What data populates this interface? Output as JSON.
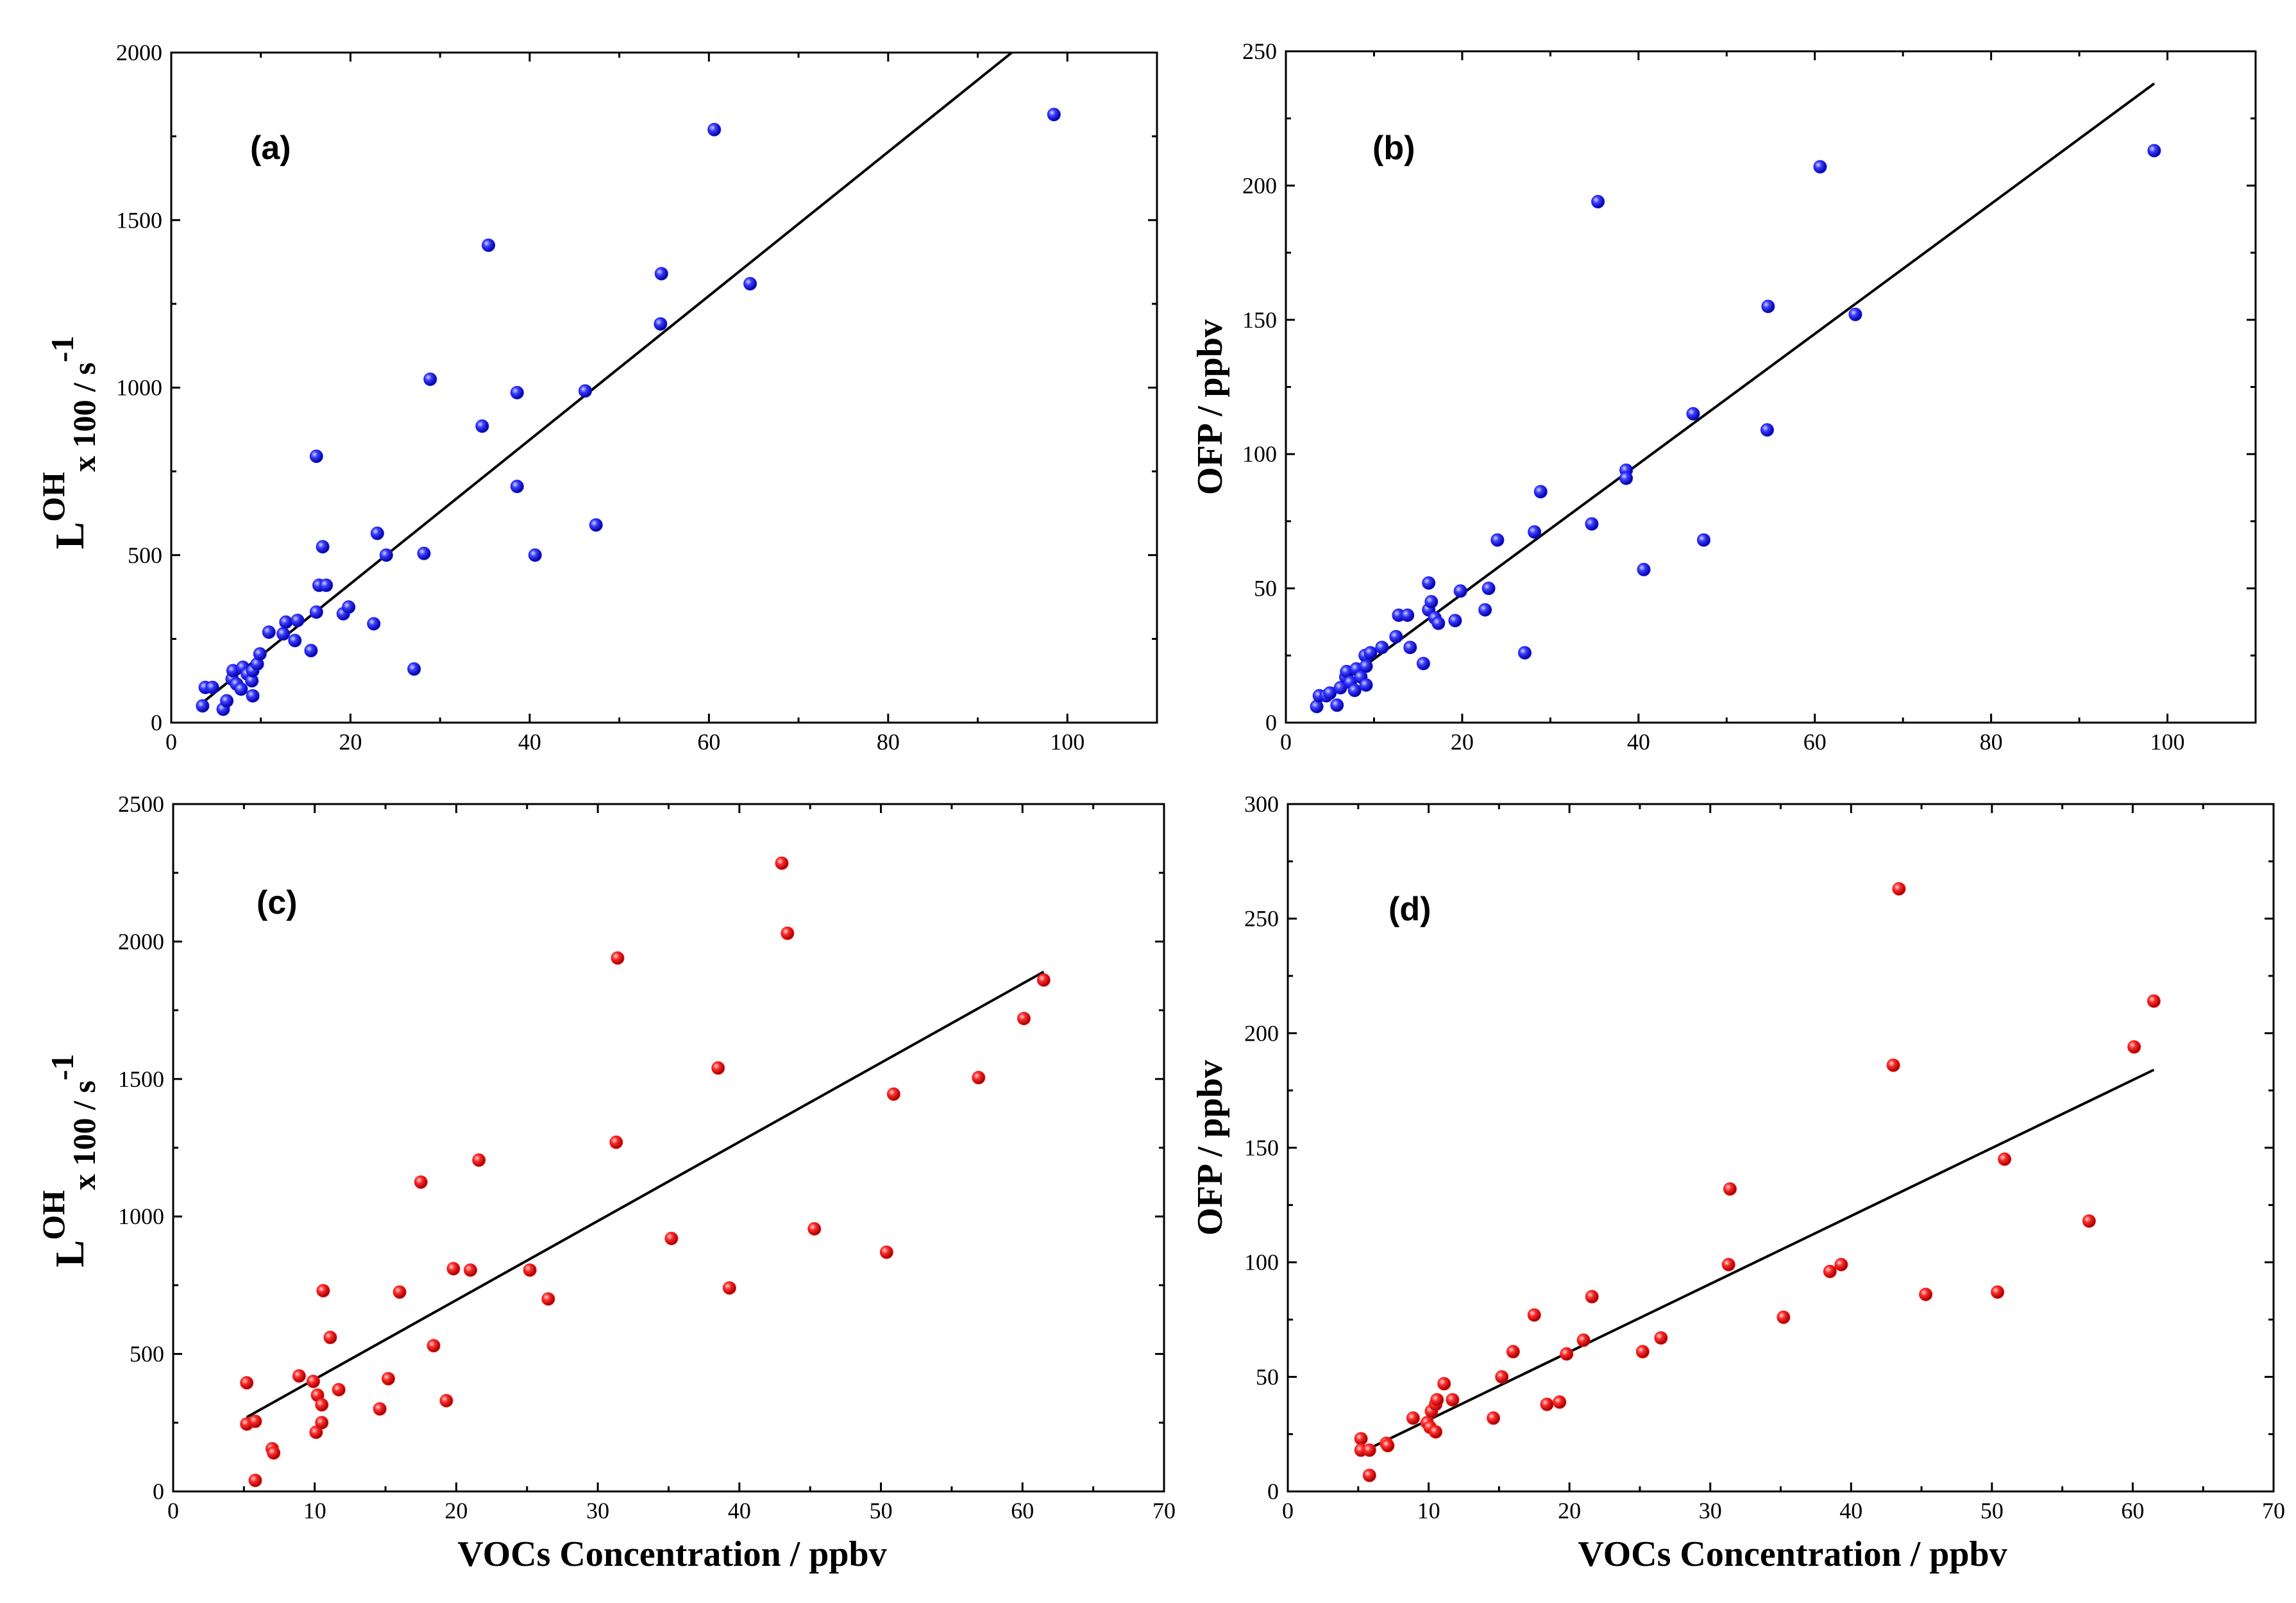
{
  "figure_colors": {
    "blue_marker": "#1a1aff",
    "red_marker": "#ff1a1a",
    "axis": "#000000",
    "fit_line": "#000000"
  },
  "chart_data": [
    {
      "type": "scatter",
      "panel_label": "(a)",
      "xlabel": "",
      "ylabel": {
        "main": "L",
        "superscript": "OH",
        "subscript": "x 100 / s",
        "unit_superscript": "-1"
      },
      "xlim": [
        0,
        110
      ],
      "ylim": [
        0,
        2000
      ],
      "xticks": [
        0,
        20,
        40,
        60,
        80,
        100
      ],
      "yticks": [
        0,
        500,
        1000,
        1500,
        2000
      ],
      "xtick_labels": [
        "0",
        "20",
        "40",
        "60",
        "80",
        "100"
      ],
      "ytick_labels": [
        "0",
        "500",
        "1000",
        "1500",
        "2000"
      ],
      "marker_color": "#1a1aff",
      "fit_line": {
        "x": [
          3.5,
          93.8
        ],
        "y": [
          60,
          2000
        ]
      },
      "points": [
        [
          3.5,
          50
        ],
        [
          3.8,
          105
        ],
        [
          4.6,
          105
        ],
        [
          5.8,
          40
        ],
        [
          6.2,
          65
        ],
        [
          6.8,
          130
        ],
        [
          6.9,
          155
        ],
        [
          7.3,
          115
        ],
        [
          7.8,
          100
        ],
        [
          8.0,
          165
        ],
        [
          8.5,
          145
        ],
        [
          9.0,
          125
        ],
        [
          9.1,
          80
        ],
        [
          9.1,
          155
        ],
        [
          9.6,
          175
        ],
        [
          9.9,
          205
        ],
        [
          10.9,
          270
        ],
        [
          12.5,
          265
        ],
        [
          12.8,
          300
        ],
        [
          13.8,
          245
        ],
        [
          14.1,
          305
        ],
        [
          15.6,
          215
        ],
        [
          16.2,
          330
        ],
        [
          16.2,
          795
        ],
        [
          16.5,
          410
        ],
        [
          16.9,
          525
        ],
        [
          17.3,
          410
        ],
        [
          19.2,
          325
        ],
        [
          19.8,
          345
        ],
        [
          22.6,
          295
        ],
        [
          23.0,
          565
        ],
        [
          24.0,
          500
        ],
        [
          27.1,
          160
        ],
        [
          28.2,
          505
        ],
        [
          28.9,
          1025
        ],
        [
          34.7,
          885
        ],
        [
          35.4,
          1425
        ],
        [
          38.6,
          985
        ],
        [
          38.6,
          705
        ],
        [
          40.6,
          500
        ],
        [
          46.2,
          990
        ],
        [
          47.4,
          590
        ],
        [
          54.6,
          1190
        ],
        [
          54.7,
          1340
        ],
        [
          60.6,
          1770
        ],
        [
          64.6,
          1310
        ],
        [
          98.5,
          1815
        ]
      ]
    },
    {
      "type": "scatter",
      "panel_label": "(b)",
      "xlabel": "",
      "ylabel": {
        "main": "OFP / ppbv"
      },
      "xlim": [
        0,
        110
      ],
      "ylim": [
        0,
        250
      ],
      "xticks": [
        0,
        20,
        40,
        60,
        80,
        100
      ],
      "yticks": [
        0,
        50,
        100,
        150,
        200,
        250
      ],
      "xtick_labels": [
        "0",
        "20",
        "40",
        "60",
        "80",
        "100"
      ],
      "ytick_labels": [
        "0",
        "50",
        "100",
        "150",
        "200",
        "250"
      ],
      "marker_color": "#1a1aff",
      "fit_line": {
        "x": [
          3.5,
          98.5
        ],
        "y": [
          8,
          238
        ]
      },
      "points": [
        [
          3.5,
          6
        ],
        [
          3.8,
          10
        ],
        [
          4.6,
          10
        ],
        [
          5.0,
          11
        ],
        [
          5.8,
          6.5
        ],
        [
          6.2,
          13
        ],
        [
          6.8,
          17
        ],
        [
          6.9,
          19
        ],
        [
          7.3,
          15
        ],
        [
          7.8,
          12
        ],
        [
          8.0,
          20
        ],
        [
          8.5,
          17
        ],
        [
          9.0,
          25
        ],
        [
          9.1,
          14
        ],
        [
          9.1,
          21
        ],
        [
          9.6,
          26
        ],
        [
          10.9,
          28
        ],
        [
          12.5,
          32
        ],
        [
          12.8,
          40
        ],
        [
          13.8,
          40
        ],
        [
          14.1,
          28
        ],
        [
          15.6,
          22
        ],
        [
          16.2,
          42
        ],
        [
          16.2,
          52
        ],
        [
          16.5,
          45
        ],
        [
          16.9,
          39
        ],
        [
          17.3,
          37
        ],
        [
          19.2,
          38
        ],
        [
          19.8,
          49
        ],
        [
          22.6,
          42
        ],
        [
          23.0,
          50
        ],
        [
          24.0,
          68
        ],
        [
          27.1,
          26
        ],
        [
          28.2,
          71
        ],
        [
          28.9,
          86
        ],
        [
          34.7,
          74
        ],
        [
          35.4,
          194
        ],
        [
          38.6,
          94
        ],
        [
          38.6,
          91
        ],
        [
          40.6,
          57
        ],
        [
          46.2,
          115
        ],
        [
          47.4,
          68
        ],
        [
          54.6,
          109
        ],
        [
          54.7,
          155
        ],
        [
          60.6,
          207
        ],
        [
          64.6,
          152
        ],
        [
          98.5,
          213
        ]
      ]
    },
    {
      "type": "scatter",
      "panel_label": "(c)",
      "xlabel": "VOCs Concentration / ppbv",
      "ylabel": {
        "main": "L",
        "superscript": "OH",
        "subscript": "x 100 / s",
        "unit_superscript": "-1"
      },
      "xlim": [
        0,
        70
      ],
      "ylim": [
        0,
        2500
      ],
      "xticks": [
        0,
        10,
        20,
        30,
        40,
        50,
        60,
        70
      ],
      "yticks": [
        0,
        500,
        1000,
        1500,
        2000,
        2500
      ],
      "xtick_labels": [
        "0",
        "10",
        "20",
        "30",
        "40",
        "50",
        "60",
        "70"
      ],
      "ytick_labels": [
        "0",
        "500",
        "1000",
        "1500",
        "2000",
        "2500"
      ],
      "marker_color": "#ff1a1a",
      "fit_line": {
        "x": [
          5.2,
          61.5
        ],
        "y": [
          270,
          1890
        ]
      },
      "points": [
        [
          5.2,
          395
        ],
        [
          5.2,
          245
        ],
        [
          5.8,
          255
        ],
        [
          5.8,
          40
        ],
        [
          7.0,
          155
        ],
        [
          7.1,
          140
        ],
        [
          8.9,
          420
        ],
        [
          9.9,
          400
        ],
        [
          10.1,
          215
        ],
        [
          10.2,
          350
        ],
        [
          10.5,
          315
        ],
        [
          10.5,
          250
        ],
        [
          10.6,
          730
        ],
        [
          11.1,
          560
        ],
        [
          11.7,
          370
        ],
        [
          14.6,
          300
        ],
        [
          15.2,
          410
        ],
        [
          16.0,
          725
        ],
        [
          17.5,
          1125
        ],
        [
          18.4,
          530
        ],
        [
          19.3,
          330
        ],
        [
          19.8,
          810
        ],
        [
          21.0,
          805
        ],
        [
          21.6,
          1205
        ],
        [
          25.2,
          805
        ],
        [
          26.5,
          700
        ],
        [
          31.3,
          1270
        ],
        [
          31.4,
          1940
        ],
        [
          35.2,
          920
        ],
        [
          38.5,
          1540
        ],
        [
          39.3,
          740
        ],
        [
          43.0,
          2285
        ],
        [
          43.4,
          2030
        ],
        [
          45.3,
          955
        ],
        [
          50.4,
          870
        ],
        [
          50.9,
          1445
        ],
        [
          56.9,
          1505
        ],
        [
          60.1,
          1720
        ],
        [
          61.5,
          1860
        ]
      ]
    },
    {
      "type": "scatter",
      "panel_label": "(d)",
      "xlabel": "VOCs Concentration / ppbv",
      "ylabel": {
        "main": "OFP / ppbv"
      },
      "xlim": [
        0,
        70
      ],
      "ylim": [
        0,
        300
      ],
      "xticks": [
        0,
        10,
        20,
        30,
        40,
        50,
        60,
        70
      ],
      "yticks": [
        0,
        50,
        100,
        150,
        200,
        250,
        300
      ],
      "xtick_labels": [
        "0",
        "10",
        "20",
        "30",
        "40",
        "50",
        "60",
        "70"
      ],
      "ytick_labels": [
        "0",
        "50",
        "100",
        "150",
        "200",
        "250",
        "300"
      ],
      "marker_color": "#ff1a1a",
      "fit_line": {
        "x": [
          5.2,
          61.5
        ],
        "y": [
          17,
          184
        ]
      },
      "points": [
        [
          5.2,
          23
        ],
        [
          5.2,
          18
        ],
        [
          5.8,
          18
        ],
        [
          5.8,
          7
        ],
        [
          7.0,
          21
        ],
        [
          7.1,
          20
        ],
        [
          8.9,
          32
        ],
        [
          9.9,
          30
        ],
        [
          10.1,
          28
        ],
        [
          10.2,
          35
        ],
        [
          10.5,
          26
        ],
        [
          10.5,
          38
        ],
        [
          10.6,
          40
        ],
        [
          11.1,
          47
        ],
        [
          11.7,
          40
        ],
        [
          14.6,
          32
        ],
        [
          15.2,
          50
        ],
        [
          16.0,
          61
        ],
        [
          17.5,
          77
        ],
        [
          18.4,
          38
        ],
        [
          19.3,
          39
        ],
        [
          19.8,
          60
        ],
        [
          21.0,
          66
        ],
        [
          21.6,
          85
        ],
        [
          25.2,
          61
        ],
        [
          26.5,
          67
        ],
        [
          31.3,
          99
        ],
        [
          31.4,
          132
        ],
        [
          35.2,
          76
        ],
        [
          38.5,
          96
        ],
        [
          39.3,
          99
        ],
        [
          43.0,
          186
        ],
        [
          43.4,
          263
        ],
        [
          45.3,
          86
        ],
        [
          50.4,
          87
        ],
        [
          50.9,
          145
        ],
        [
          56.9,
          118
        ],
        [
          60.1,
          194
        ],
        [
          61.5,
          214
        ]
      ]
    }
  ]
}
